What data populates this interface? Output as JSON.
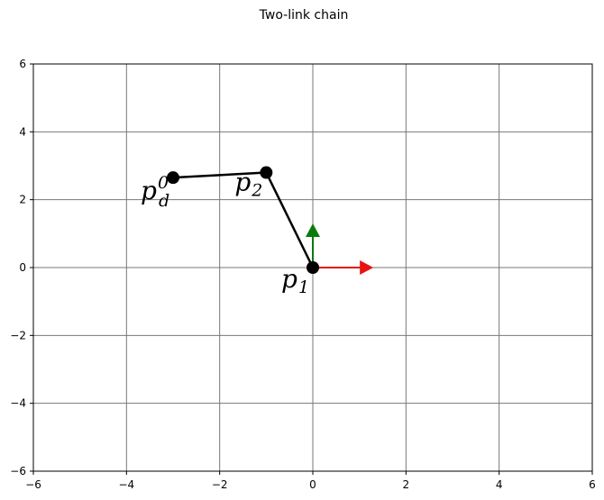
{
  "chart_data": {
    "type": "scatter",
    "title": "Two-link chain",
    "xlabel": "",
    "ylabel": "",
    "xlim": [
      -6,
      6
    ],
    "ylim": [
      -6,
      6
    ],
    "x_ticks": [
      -6,
      -4,
      -2,
      0,
      2,
      4,
      6
    ],
    "y_ticks": [
      -6,
      -4,
      -2,
      0,
      2,
      4,
      6
    ],
    "x_tick_labels": [
      "−6",
      "−4",
      "−2",
      "0",
      "2",
      "4",
      "6"
    ],
    "y_tick_labels": [
      "−6",
      "−4",
      "−2",
      "0",
      "2",
      "4",
      "6"
    ],
    "grid": true,
    "chain": [
      {
        "name": "p",
        "sub": "1",
        "sup": "",
        "x": 0,
        "y": 0
      },
      {
        "name": "p",
        "sub": "2",
        "sup": "",
        "x": -1,
        "y": 2.8
      },
      {
        "name": "p",
        "sub": "d",
        "sup": "0",
        "x": -3,
        "y": 2.65
      }
    ],
    "arrows": [
      {
        "name": "x-axis-arrow",
        "x0": 0,
        "y0": 0,
        "dx": 1.3,
        "dy": 0,
        "color": "#e8140f"
      },
      {
        "name": "y-axis-arrow",
        "x0": 0,
        "y0": 0,
        "dx": 0,
        "dy": 1.3,
        "color": "#0a7a0a"
      }
    ],
    "colors": {
      "link": "#000000",
      "grid": "#777777",
      "point": "#000000"
    }
  }
}
